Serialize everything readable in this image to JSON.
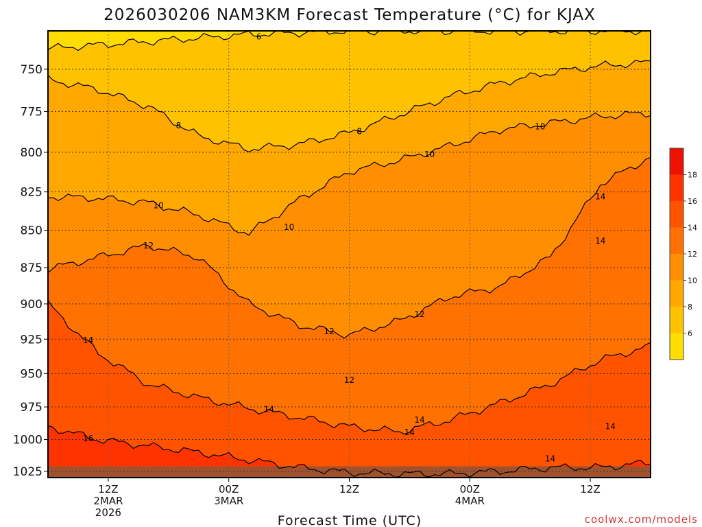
{
  "chart_data": {
    "type": "heatmap",
    "title": "2026030206 NAM3KM Forecast Temperature (°C) for KJAX",
    "xlabel": "Forecast Time (UTC)",
    "ylabel": "",
    "credit": "coolwx.com/models",
    "x_range_hours": [
      6,
      66
    ],
    "y_range_hPa": [
      728,
      1030
    ],
    "y_scale": "log-pressure",
    "y_ticks": [
      750,
      775,
      800,
      825,
      850,
      875,
      900,
      925,
      950,
      975,
      1000,
      1025
    ],
    "x_ticks": [
      {
        "hour": 12,
        "lines": [
          "12Z",
          "2MAR",
          "2026"
        ]
      },
      {
        "hour": 24,
        "lines": [
          "00Z",
          "3MAR"
        ]
      },
      {
        "hour": 36,
        "lines": [
          "12Z"
        ]
      },
      {
        "hour": 48,
        "lines": [
          "00Z",
          "4MAR"
        ]
      },
      {
        "hour": 60,
        "lines": [
          "12Z"
        ]
      }
    ],
    "grid": "dotted",
    "colorbar": {
      "placement": "right",
      "ticks": [
        6,
        8,
        10,
        12,
        14,
        16,
        18
      ],
      "colors": [
        "#ffdd00",
        "#ffc200",
        "#ffa800",
        "#ff8e00",
        "#ff7100",
        "#ff5300",
        "#ff3300",
        "#ee1100"
      ]
    },
    "contour_interval": 2,
    "contours": [
      {
        "value": 6,
        "pressure": [
          738,
          736,
          734,
          732,
          730,
          729,
          728,
          728,
          728,
          728,
          728,
          728,
          728
        ],
        "label_hour": 27
      },
      {
        "value": 8,
        "pressure": [
          756,
          762,
          772,
          790,
          798,
          795,
          788,
          777,
          766,
          758,
          752,
          748,
          746
        ],
        "label_hour": 19,
        "label_hour2": 37
      },
      {
        "value": 10,
        "pressure": [
          828,
          829,
          832,
          840,
          852,
          830,
          812,
          805,
          796,
          786,
          782,
          778,
          776
        ],
        "label_hour": 17,
        "label_hour2": 44,
        "label_hour3": 55
      },
      {
        "value": 12,
        "pressure": [
          876,
          868,
          860,
          868,
          900,
          915,
          922,
          912,
          895,
          888,
          868,
          820,
          803
        ],
        "label_hour": 16,
        "label_hour2": 34,
        "label_hour3": 43
      },
      {
        "value": 14,
        "pressure": [
          900,
          935,
          958,
          968,
          976,
          983,
          990,
          994,
          985,
          972,
          958,
          940,
          930
        ],
        "label_hour": 10,
        "label_hour2": 28,
        "label_hour3": 42
      },
      {
        "value": 16,
        "pressure": [
          990,
          1000,
          1005,
          1010,
          1016,
          1022,
          1026,
          1027,
          1027,
          1025,
          1022,
          1022,
          1018
        ],
        "label_hour": 10
      }
    ],
    "extra_labels": [
      {
        "text": "14",
        "hour": 61,
        "pressure": 828
      },
      {
        "text": "14",
        "hour": 61,
        "pressure": 857
      },
      {
        "text": "10",
        "hour": 30,
        "pressure": 848
      },
      {
        "text": "12",
        "hour": 36,
        "pressure": 955
      },
      {
        "text": "14",
        "hour": 43,
        "pressure": 985
      },
      {
        "text": "14",
        "hour": 62,
        "pressure": 990
      },
      {
        "text": "14",
        "hour": 56,
        "pressure": 1015
      }
    ],
    "ground_pressure_hPa": 1021
  }
}
